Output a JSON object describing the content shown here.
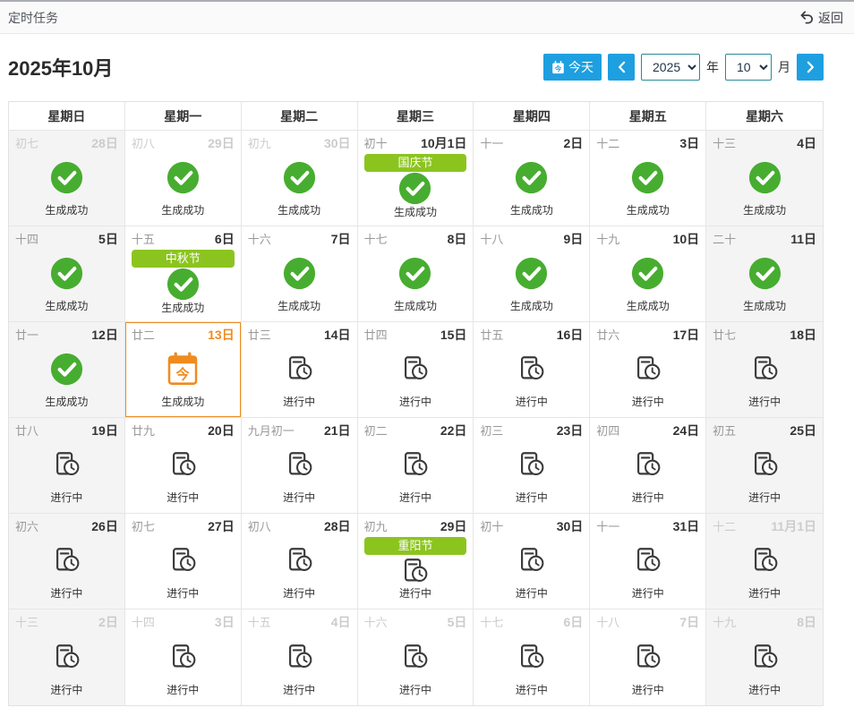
{
  "colors": {
    "accent_blue": "#1e9fe0",
    "select_border_teal": "#2b8a96",
    "success_green": "#47ad30",
    "festival_green": "#8cc41f",
    "today_orange": "#ef8b1f",
    "weekend_bg": "#f4f4f4",
    "muted_text": "#cccccc"
  },
  "topbar": {
    "title": "定时任务",
    "back_label": "返回"
  },
  "toolbar": {
    "month_title": "2025年10月",
    "today_label": "今天",
    "year_value": "2025",
    "year_unit": "年",
    "month_value": "10",
    "month_unit": "月"
  },
  "icons": {
    "back": "undo-arrow",
    "today_button": "calendar-icon",
    "prev": "chevron-left",
    "next": "chevron-right",
    "success": "check-circle",
    "progress": "file-clock",
    "today_cell": "calendar-today",
    "today_char": "今"
  },
  "calendar": {
    "weekdays": [
      "星期日",
      "星期一",
      "星期二",
      "星期三",
      "星期四",
      "星期五",
      "星期六"
    ],
    "status_labels": {
      "success": "生成成功",
      "progress": "进行中"
    },
    "days": [
      {
        "lunar": "初七",
        "date": "28日",
        "muted": true,
        "status": "success"
      },
      {
        "lunar": "初八",
        "date": "29日",
        "muted": true,
        "status": "success"
      },
      {
        "lunar": "初九",
        "date": "30日",
        "muted": true,
        "status": "success"
      },
      {
        "lunar": "初十",
        "date": "10月1日",
        "festival": "国庆节",
        "status": "success"
      },
      {
        "lunar": "十一",
        "date": "2日",
        "status": "success"
      },
      {
        "lunar": "十二",
        "date": "3日",
        "status": "success"
      },
      {
        "lunar": "十三",
        "date": "4日",
        "status": "success"
      },
      {
        "lunar": "十四",
        "date": "5日",
        "status": "success"
      },
      {
        "lunar": "十五",
        "date": "6日",
        "festival": "中秋节",
        "status": "success"
      },
      {
        "lunar": "十六",
        "date": "7日",
        "status": "success"
      },
      {
        "lunar": "十七",
        "date": "8日",
        "status": "success"
      },
      {
        "lunar": "十八",
        "date": "9日",
        "status": "success"
      },
      {
        "lunar": "十九",
        "date": "10日",
        "status": "success"
      },
      {
        "lunar": "二十",
        "date": "11日",
        "status": "success"
      },
      {
        "lunar": "廿一",
        "date": "12日",
        "status": "success"
      },
      {
        "lunar": "廿二",
        "date": "13日",
        "status": "success",
        "today": true
      },
      {
        "lunar": "廿三",
        "date": "14日",
        "status": "progress"
      },
      {
        "lunar": "廿四",
        "date": "15日",
        "status": "progress"
      },
      {
        "lunar": "廿五",
        "date": "16日",
        "status": "progress"
      },
      {
        "lunar": "廿六",
        "date": "17日",
        "status": "progress"
      },
      {
        "lunar": "廿七",
        "date": "18日",
        "status": "progress"
      },
      {
        "lunar": "廿八",
        "date": "19日",
        "status": "progress"
      },
      {
        "lunar": "廿九",
        "date": "20日",
        "status": "progress"
      },
      {
        "lunar": "九月初一",
        "date": "21日",
        "status": "progress"
      },
      {
        "lunar": "初二",
        "date": "22日",
        "status": "progress"
      },
      {
        "lunar": "初三",
        "date": "23日",
        "status": "progress"
      },
      {
        "lunar": "初四",
        "date": "24日",
        "status": "progress"
      },
      {
        "lunar": "初五",
        "date": "25日",
        "status": "progress"
      },
      {
        "lunar": "初六",
        "date": "26日",
        "status": "progress"
      },
      {
        "lunar": "初七",
        "date": "27日",
        "status": "progress"
      },
      {
        "lunar": "初八",
        "date": "28日",
        "status": "progress"
      },
      {
        "lunar": "初九",
        "date": "29日",
        "festival": "重阳节",
        "status": "progress"
      },
      {
        "lunar": "初十",
        "date": "30日",
        "status": "progress"
      },
      {
        "lunar": "十一",
        "date": "31日",
        "status": "progress"
      },
      {
        "lunar": "十二",
        "date": "11月1日",
        "muted": true,
        "status": "progress"
      },
      {
        "lunar": "十三",
        "date": "2日",
        "muted": true,
        "status": "progress"
      },
      {
        "lunar": "十四",
        "date": "3日",
        "muted": true,
        "status": "progress"
      },
      {
        "lunar": "十五",
        "date": "4日",
        "muted": true,
        "status": "progress"
      },
      {
        "lunar": "十六",
        "date": "5日",
        "muted": true,
        "status": "progress"
      },
      {
        "lunar": "十七",
        "date": "6日",
        "muted": true,
        "status": "progress"
      },
      {
        "lunar": "十八",
        "date": "7日",
        "muted": true,
        "status": "progress"
      },
      {
        "lunar": "十九",
        "date": "8日",
        "muted": true,
        "status": "progress"
      }
    ]
  }
}
